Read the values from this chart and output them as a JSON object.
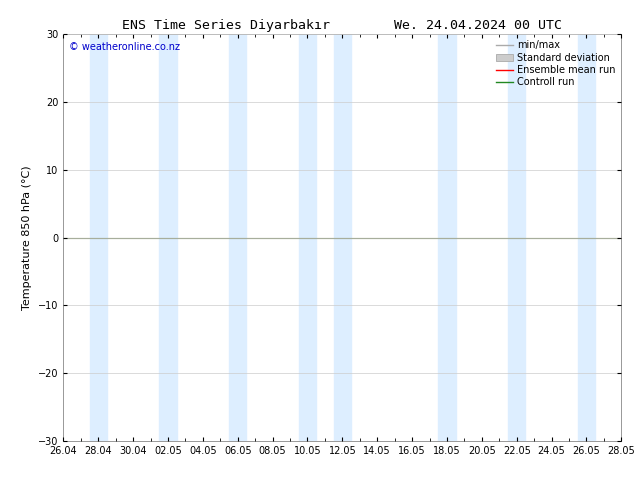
{
  "title": "ENS Time Series Diyarbakır        We. 24.04.2024 00 UTC",
  "ylabel": "Temperature 850 hPa (°C)",
  "watermark": "© weatheronline.co.nz",
  "ylim": [
    -30,
    30
  ],
  "yticks": [
    -30,
    -20,
    -10,
    0,
    10,
    20,
    30
  ],
  "x_tick_labels": [
    "26.04",
    "28.04",
    "30.04",
    "02.05",
    "04.05",
    "06.05",
    "08.05",
    "10.05",
    "12.05",
    "14.05",
    "16.05",
    "18.05",
    "20.05",
    "22.05",
    "24.05",
    "26.05",
    "28.05"
  ],
  "x_tick_positions": [
    0,
    2,
    4,
    6,
    8,
    10,
    12,
    14,
    16,
    18,
    20,
    22,
    24,
    26,
    28,
    30,
    32
  ],
  "x_start": 0,
  "x_end": 32,
  "zero_line_y": 0,
  "shaded_bands": [
    [
      1.5,
      2.5
    ],
    [
      5.5,
      6.5
    ],
    [
      9.5,
      10.5
    ],
    [
      13.5,
      14.5
    ],
    [
      15.5,
      16.5
    ],
    [
      21.5,
      22.5
    ],
    [
      25.5,
      26.5
    ],
    [
      29.5,
      30.5
    ]
  ],
  "shaded_color": "#ddeeff",
  "bg_color": "#ffffff",
  "legend_items": [
    {
      "label": "min/max",
      "color": "#aaaaaa",
      "type": "errorbar"
    },
    {
      "label": "Standard deviation",
      "color": "#cccccc",
      "type": "band"
    },
    {
      "label": "Ensemble mean run",
      "color": "#ff0000",
      "type": "line"
    },
    {
      "label": "Controll run",
      "color": "#228822",
      "type": "line"
    }
  ],
  "zero_line_color": "#556b2f",
  "title_fontsize": 9.5,
  "tick_fontsize": 7,
  "ylabel_fontsize": 8,
  "watermark_color": "#0000cc",
  "watermark_fontsize": 7,
  "legend_fontsize": 7
}
